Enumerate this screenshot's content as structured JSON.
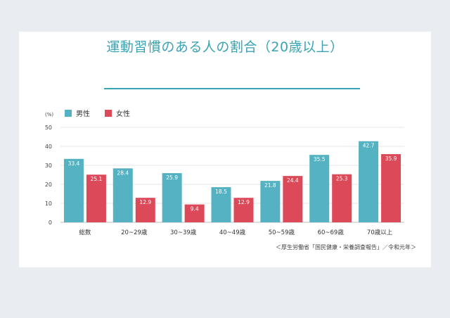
{
  "title": "運動習慣のある人の割合（20歳以上）",
  "source": "＜厚生労働省「国民健康・栄養調査報告」／令和元年＞",
  "chart_data": {
    "type": "bar",
    "unit": "(%)",
    "ylim": [
      0,
      50
    ],
    "yticks": [
      0,
      10,
      20,
      30,
      40,
      50
    ],
    "grid": true,
    "legend_position": "top-left",
    "categories": [
      "総数",
      "20~29歳",
      "30~39歳",
      "40~49歳",
      "50~59歳",
      "60~69歳",
      "70歳以上"
    ],
    "series": [
      {
        "name": "男性",
        "color": "#55b2c2",
        "values": [
          33.4,
          28.4,
          25.9,
          18.5,
          21.8,
          35.5,
          42.7
        ]
      },
      {
        "name": "女性",
        "color": "#dc4a5a",
        "values": [
          25.1,
          12.9,
          9.4,
          12.9,
          24.4,
          25.3,
          35.9
        ]
      }
    ]
  }
}
